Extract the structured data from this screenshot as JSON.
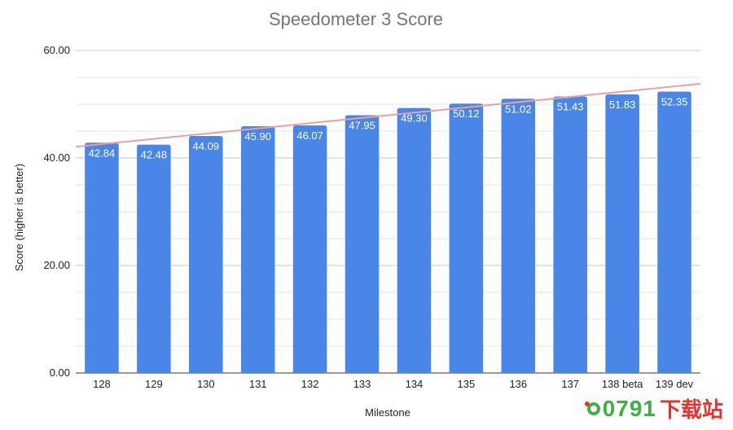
{
  "chart_data": {
    "type": "bar",
    "title": "Speedometer 3 Score",
    "xlabel": "Milestone",
    "ylabel": "Score (higher is better)",
    "categories": [
      "128",
      "129",
      "130",
      "131",
      "132",
      "133",
      "134",
      "135",
      "136",
      "137",
      "138 beta",
      "139 dev"
    ],
    "values": [
      42.84,
      42.48,
      44.09,
      45.9,
      46.07,
      47.95,
      49.3,
      50.12,
      51.02,
      51.43,
      51.83,
      52.35
    ],
    "value_labels": [
      "42.84",
      "42.48",
      "44.09",
      "45.90",
      "46.07",
      "47.95",
      "49.30",
      "50.12",
      "51.02",
      "51.43",
      "51.83",
      "52.35"
    ],
    "ylim": [
      0,
      60
    ],
    "y_ticks": [
      "0.00",
      "20.00",
      "40.00",
      "60.00"
    ],
    "trendline": {
      "type": "linear",
      "color": "#e8a0a0"
    },
    "bar_color": "#4a86e8",
    "grid": true,
    "legend": "none"
  },
  "watermark": {
    "digits": "0791",
    "text": "下载站"
  }
}
